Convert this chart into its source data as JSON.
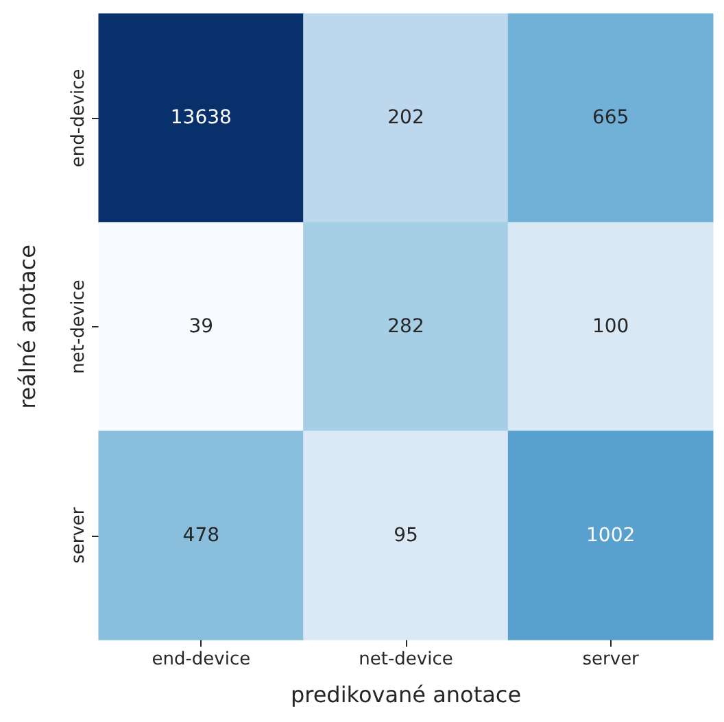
{
  "chart_data": {
    "type": "heatmap",
    "xlabel": "predikované anotace",
    "ylabel": "reálné anotace",
    "categories": [
      "end-device",
      "net-device",
      "server"
    ],
    "y_categories": [
      "end-device",
      "net-device",
      "server"
    ],
    "cells": [
      [
        13638,
        202,
        665
      ],
      [
        39,
        282,
        100
      ],
      [
        478,
        95,
        1002
      ]
    ],
    "colors": [
      "#08306b",
      "#bdd7ec",
      "#71b1d7",
      "#f7fbff",
      "#a6cee4",
      "#d9e8f5",
      "#89bedc",
      "#dbe9f6",
      "#58a1cf"
    ],
    "data_labels": true
  }
}
